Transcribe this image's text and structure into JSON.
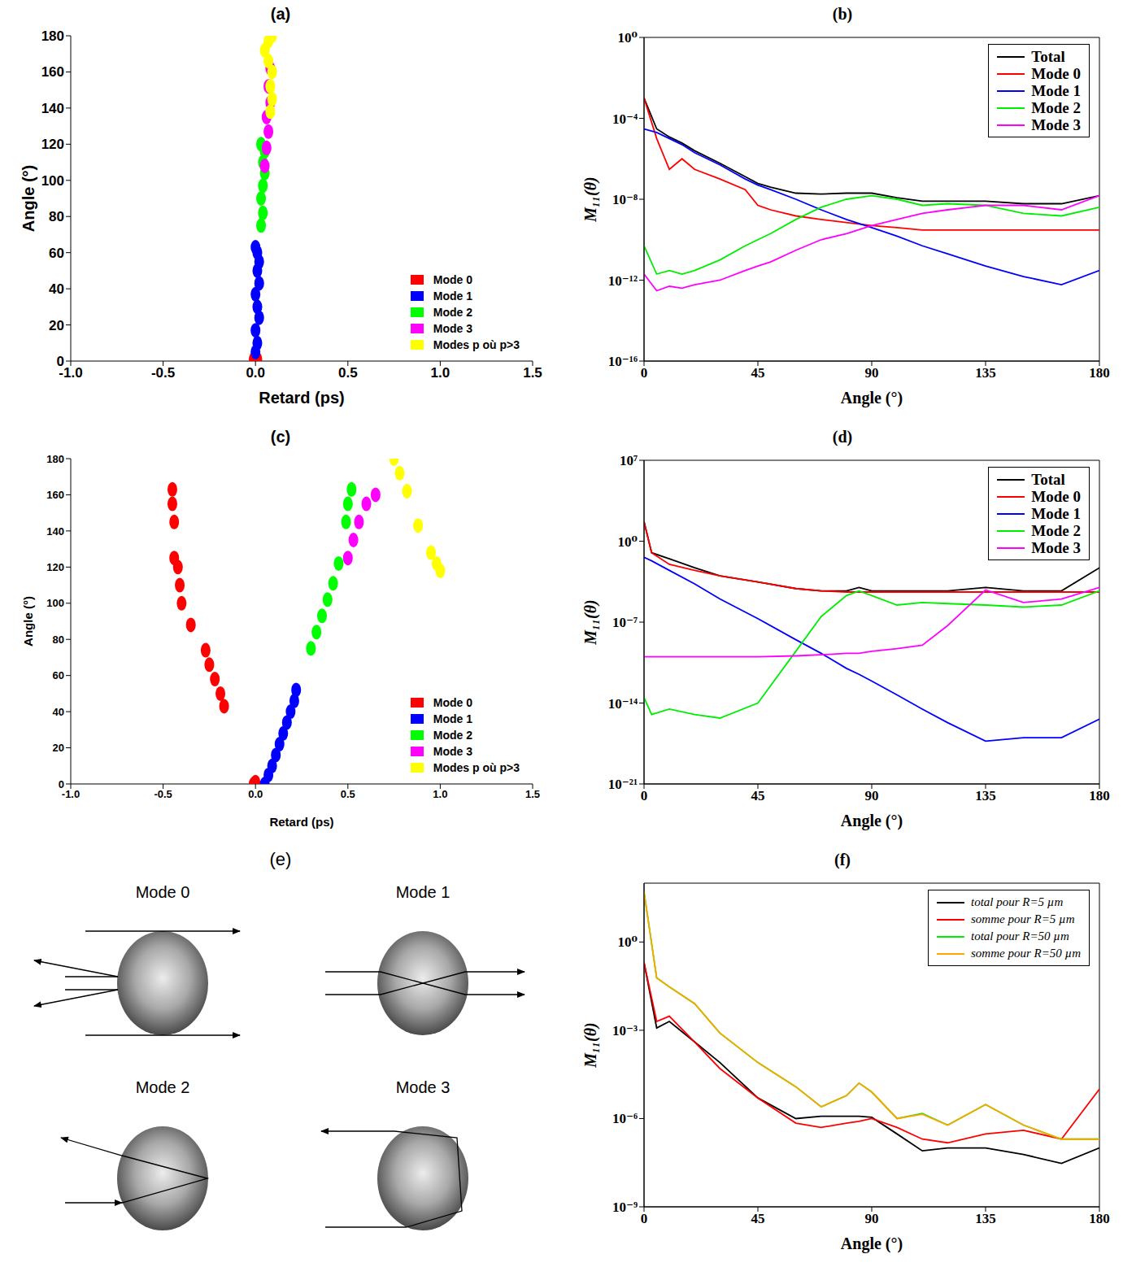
{
  "chart_data": [
    {
      "title": "(a)",
      "type": "scatter",
      "x_label": "Retard (ps)",
      "y_label": "Angle (°)",
      "xlim": [
        -1,
        1.5
      ],
      "xticks": [
        {
          "value": -1,
          "label": "-1.0"
        },
        {
          "value": -0.5,
          "label": "-0.5"
        },
        {
          "value": 0,
          "label": "0.0"
        },
        {
          "value": 0.5,
          "label": "0.5"
        },
        {
          "value": 1,
          "label": "1.0"
        },
        {
          "value": 1.5,
          "label": "1.5"
        }
      ],
      "ylim": [
        0,
        180
      ],
      "yticks": [
        0,
        20,
        40,
        60,
        80,
        100,
        120,
        140,
        160,
        180
      ],
      "legend": "bottom-right",
      "marker": "circle",
      "grid": false,
      "series": [
        {
          "name": "Mode 0",
          "color": "#ff0000",
          "x": [
            -0.01,
            0,
            0.01
          ],
          "values": [
            1,
            0,
            1
          ]
        },
        {
          "name": "Mode 1",
          "color": "#0000ff",
          "x": [
            0,
            0.01,
            0,
            0.02,
            0.01,
            0,
            0.02,
            0.01,
            0.02,
            0.01,
            0
          ],
          "values": [
            5,
            10,
            17,
            24,
            30,
            37,
            43,
            50,
            55,
            60,
            63
          ]
        },
        {
          "name": "Mode 2",
          "color": "#00ff00",
          "x": [
            0.03,
            0.04,
            0.03,
            0.04,
            0.05,
            0.04,
            0.05,
            0.03
          ],
          "values": [
            75,
            82,
            90,
            97,
            104,
            110,
            116,
            120
          ]
        },
        {
          "name": "Mode 3",
          "color": "#ff00ff",
          "x": [
            0.05,
            0.06,
            0.07,
            0.06,
            0.08,
            0.07,
            0.08
          ],
          "values": [
            108,
            118,
            127,
            135,
            143,
            152,
            162
          ]
        },
        {
          "name": "Modes p où p>3",
          "color": "#ffff00",
          "x": [
            0.08,
            0.09,
            0.08,
            0.09,
            0.07,
            0.05,
            0.07,
            0.09
          ],
          "values": [
            138,
            145,
            152,
            160,
            166,
            172,
            177,
            180
          ]
        }
      ]
    },
    {
      "title": "(b)",
      "type": "line",
      "x_label": "Angle (°)",
      "y_label": "M₁₁(θ)",
      "log": "y",
      "grid": false,
      "legend": "top-right",
      "xlim": [
        0,
        180
      ],
      "xticks": [
        0,
        45,
        90,
        135,
        180
      ],
      "ylim": [
        1e-16,
        1
      ],
      "yticks": [
        {
          "value": 1e-16,
          "label": "10⁻¹⁶"
        },
        {
          "value": 1e-12,
          "label": "10⁻¹²"
        },
        {
          "value": 1e-08,
          "label": "10⁻⁸"
        },
        {
          "value": 0.0001,
          "label": "10⁻⁴"
        },
        {
          "value": 1,
          "label": "10⁰"
        }
      ],
      "x": [
        0,
        5,
        10,
        15,
        20,
        30,
        40,
        45,
        50,
        60,
        70,
        80,
        90,
        100,
        110,
        120,
        135,
        150,
        165,
        180
      ],
      "series": [
        {
          "name": "Total",
          "color": "#000000",
          "values": [
            0.001,
            3e-05,
            1.2e-05,
            6e-06,
            2.5e-06,
            6e-07,
            1.3e-07,
            6e-08,
            4e-08,
            2e-08,
            1.8e-08,
            2e-08,
            2e-08,
            1.2e-08,
            8e-09,
            8e-09,
            8e-09,
            6e-09,
            6e-09,
            1.5e-08
          ]
        },
        {
          "name": "Mode 0",
          "color": "#ff0000",
          "values": [
            0.001,
            1e-05,
            3e-07,
            1e-06,
            3e-07,
            1e-07,
            3e-08,
            5e-09,
            3e-09,
            1.5e-09,
            1e-09,
            7e-10,
            5e-10,
            4e-10,
            3e-10,
            3e-10,
            3e-10,
            3e-10,
            3e-10,
            3e-10
          ]
        },
        {
          "name": "Mode 1",
          "color": "#0000ff",
          "values": [
            3e-05,
            2e-05,
            1e-05,
            5e-06,
            2e-06,
            5e-07,
            1e-07,
            5e-08,
            3e-08,
            1e-08,
            3e-09,
            1e-09,
            4e-10,
            1.5e-10,
            5e-11,
            2e-11,
            5e-12,
            1.5e-12,
            6e-13,
            3e-12
          ]
        },
        {
          "name": "Mode 2",
          "color": "#00ee00",
          "values": [
            5e-11,
            2e-12,
            3e-12,
            2e-12,
            3e-12,
            1e-11,
            5e-11,
            1e-10,
            2e-10,
            1e-09,
            4e-09,
            1e-08,
            1.5e-08,
            1e-08,
            5e-09,
            6e-09,
            5e-09,
            2e-09,
            1.5e-09,
            4e-09
          ]
        },
        {
          "name": "Mode 3",
          "color": "#ff00ff",
          "values": [
            2e-12,
            3e-13,
            5e-13,
            4e-13,
            6e-13,
            1e-12,
            3e-12,
            5e-12,
            8e-12,
            3e-11,
            1e-10,
            2e-10,
            5e-10,
            1e-09,
            2e-09,
            3e-09,
            5e-09,
            5e-09,
            3e-09,
            1.5e-08
          ]
        }
      ]
    },
    {
      "title": "(c)",
      "type": "scatter",
      "x_label": "Retard (ps)",
      "y_label": "Angle (°)",
      "xlim": [
        -1,
        1.5
      ],
      "xticks": [
        {
          "value": -1,
          "label": "-1.0"
        },
        {
          "value": -0.5,
          "label": "-0.5"
        },
        {
          "value": 0,
          "label": "0.0"
        },
        {
          "value": 0.5,
          "label": "0.5"
        },
        {
          "value": 1,
          "label": "1.0"
        },
        {
          "value": 1.5,
          "label": "1.5"
        }
      ],
      "ylim": [
        0,
        180
      ],
      "yticks": [
        0,
        20,
        40,
        60,
        80,
        100,
        120,
        140,
        160,
        180
      ],
      "legend": "bottom-right",
      "marker": "circle",
      "grid": false,
      "series": [
        {
          "name": "Mode 0",
          "color": "#ff0000",
          "x": [
            0,
            -0.01,
            -0.17,
            -0.19,
            -0.22,
            -0.25,
            -0.27,
            -0.35,
            -0.4,
            -0.41,
            -0.42,
            -0.44,
            -0.44,
            -0.45,
            -0.45
          ],
          "values": [
            1,
            0,
            43,
            50,
            58,
            66,
            74,
            88,
            100,
            110,
            120,
            125,
            145,
            155,
            163
          ]
        },
        {
          "name": "Mode 1",
          "color": "#0000ff",
          "x": [
            0.05,
            0.07,
            0.09,
            0.11,
            0.13,
            0.15,
            0.17,
            0.19,
            0.21,
            0.22
          ],
          "values": [
            0,
            5,
            10,
            16,
            22,
            28,
            34,
            40,
            46,
            52
          ]
        },
        {
          "name": "Mode 2",
          "color": "#00ff00",
          "x": [
            0.3,
            0.33,
            0.36,
            0.39,
            0.42,
            0.45,
            0.49,
            0.5,
            0.52
          ],
          "values": [
            75,
            84,
            93,
            102,
            111,
            122,
            145,
            155,
            163
          ]
        },
        {
          "name": "Mode 3",
          "color": "#ff00ff",
          "x": [
            0.5,
            0.53,
            0.56,
            0.6,
            0.65
          ],
          "values": [
            125,
            135,
            145,
            155,
            160
          ]
        },
        {
          "name": "Modes p où p>3",
          "color": "#ffff00",
          "x": [
            0.75,
            0.78,
            0.82,
            0.88,
            0.95,
            0.98,
            1.0
          ],
          "values": [
            180,
            172,
            162,
            143,
            128,
            122,
            118
          ]
        }
      ]
    },
    {
      "title": "(d)",
      "type": "line",
      "x_label": "Angle (°)",
      "y_label": "M₁₁(θ)",
      "log": "y",
      "grid": false,
      "legend": "top-right",
      "xlim": [
        0,
        180
      ],
      "xticks": [
        0,
        45,
        90,
        135,
        180
      ],
      "ylim": [
        1e-21,
        10000000.0
      ],
      "yticks": [
        {
          "value": 1e-21,
          "label": "10⁻²¹"
        },
        {
          "value": 1e-14,
          "label": "10⁻¹⁴"
        },
        {
          "value": 1e-07,
          "label": "10⁻⁷"
        },
        {
          "value": 1,
          "label": "10⁰"
        },
        {
          "value": 10000000.0,
          "label": "10⁷"
        }
      ],
      "x": [
        0,
        3,
        10,
        20,
        30,
        45,
        60,
        70,
        80,
        85,
        90,
        100,
        110,
        120,
        135,
        150,
        165,
        180
      ],
      "series": [
        {
          "name": "Total",
          "color": "#000000",
          "values": [
            50,
            0.1,
            0.03,
            0.005,
            0.001,
            0.0003,
            8e-05,
            5e-05,
            5e-05,
            0.0001,
            5e-05,
            5e-05,
            5e-05,
            5e-05,
            0.0001,
            5e-05,
            5e-05,
            0.005
          ]
        },
        {
          "name": "Mode 0",
          "color": "#ff0000",
          "values": [
            50,
            0.1,
            0.01,
            0.003,
            0.001,
            0.0003,
            8e-05,
            5e-05,
            4e-05,
            4e-05,
            4e-05,
            4e-05,
            4e-05,
            4e-05,
            4e-05,
            4e-05,
            4e-05,
            4e-05
          ]
        },
        {
          "name": "Mode 1",
          "color": "#0000ff",
          "values": [
            0.04,
            0.02,
            0.003,
            0.0002,
            1e-05,
            2e-07,
            3e-09,
            2e-10,
            1e-11,
            3e-12,
            8e-13,
            5e-14,
            3e-15,
            2e-16,
            5e-18,
            1e-17,
            1e-17,
            4e-16
          ]
        },
        {
          "name": "Mode 2",
          "color": "#00ee00",
          "values": [
            3e-14,
            1e-15,
            3e-15,
            1e-15,
            5e-16,
            1e-14,
            3e-10,
            3e-07,
            2e-05,
            5e-05,
            2e-05,
            3e-06,
            5e-06,
            4e-06,
            3e-06,
            2e-06,
            3e-06,
            5e-05
          ]
        },
        {
          "name": "Mode 3",
          "color": "#ff00ff",
          "values": [
            1e-10,
            1e-10,
            1e-10,
            1e-10,
            1e-10,
            1e-10,
            1.2e-10,
            1.5e-10,
            2e-10,
            2e-10,
            3e-10,
            5e-10,
            1e-09,
            5e-08,
            6e-05,
            5e-06,
            1e-05,
            0.0001
          ]
        }
      ]
    },
    {
      "title": "(f)",
      "type": "line",
      "x_label": "Angle (°)",
      "y_label": "M₁₁(θ)",
      "log": "y",
      "grid": false,
      "legend": "top-right",
      "xlim": [
        0,
        180
      ],
      "xticks": [
        0,
        45,
        90,
        135,
        180
      ],
      "ylim": [
        1e-09,
        100
      ],
      "yticks": [
        {
          "value": 1e-09,
          "label": "10⁻⁹"
        },
        {
          "value": 1e-06,
          "label": "10⁻⁶"
        },
        {
          "value": 0.001,
          "label": "10⁻³"
        },
        {
          "value": 1,
          "label": "10⁰"
        }
      ],
      "x": [
        0,
        5,
        10,
        20,
        30,
        45,
        60,
        70,
        80,
        85,
        90,
        100,
        110,
        120,
        135,
        150,
        165,
        180
      ],
      "series": [
        {
          "name": "total pour R=5 µm",
          "color": "#000000",
          "values": [
            0.2,
            0.0012,
            0.002,
            0.0004,
            8e-05,
            5e-06,
            1e-06,
            1.2e-06,
            1.2e-06,
            1.2e-06,
            1.1e-06,
            3e-07,
            8e-08,
            1e-07,
            1e-07,
            6e-08,
            3e-08,
            1e-07
          ]
        },
        {
          "name": "somme pour R=5 µm",
          "color": "#ff0000",
          "values": [
            0.2,
            0.002,
            0.003,
            0.0004,
            5e-05,
            5e-06,
            7e-07,
            5e-07,
            7e-07,
            8e-07,
            1e-06,
            5e-07,
            2e-07,
            1.5e-07,
            3e-07,
            4e-07,
            2e-07,
            1e-05
          ]
        },
        {
          "name": "total pour R=50 µm",
          "color": "#00ee00",
          "values": [
            50,
            0.06,
            0.03,
            0.008,
            0.0008,
            8e-05,
            1.2e-05,
            2.5e-06,
            6e-06,
            1.6e-05,
            8e-06,
            1e-06,
            1.5e-06,
            6e-07,
            3e-06,
            6e-07,
            2e-07,
            2e-07
          ]
        },
        {
          "name": "somme pour R=50 µm",
          "color": "#ffa500",
          "values": [
            50,
            0.06,
            0.03,
            0.008,
            0.0008,
            8e-05,
            1.2e-05,
            2.5e-06,
            6e-06,
            1.6e-05,
            8e-06,
            1e-06,
            1.4e-06,
            6e-07,
            3e-06,
            6e-07,
            2e-07,
            2e-07
          ]
        }
      ]
    }
  ],
  "diagram": {
    "title": "(e)",
    "items": [
      "Mode 0",
      "Mode 1",
      "Mode 2",
      "Mode 3"
    ]
  }
}
